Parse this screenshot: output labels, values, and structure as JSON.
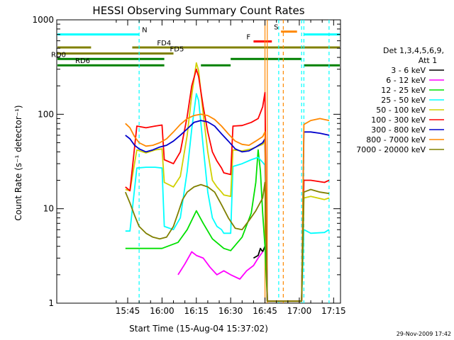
{
  "chart_data": {
    "type": "line",
    "title": "HESSI Observing Summary Count Rates",
    "xlabel": "Start Time (15-Aug-04 15:37:02)",
    "ylabel": "Count Rate (s⁻¹ detector⁻¹)",
    "ylog": true,
    "ylim": [
      1,
      1000
    ],
    "xlim_minutes": [
      -23,
      101
    ],
    "xticks": [
      {
        "t": 8,
        "label": "15:45"
      },
      {
        "t": 23,
        "label": "16:00"
      },
      {
        "t": 38,
        "label": "16:15"
      },
      {
        "t": 53,
        "label": "16:30"
      },
      {
        "t": 68,
        "label": "16:45"
      },
      {
        "t": 83,
        "label": "17:00"
      },
      {
        "t": 98,
        "label": "17:15"
      }
    ],
    "yticks": [
      {
        "v": 1,
        "label": "1"
      },
      {
        "v": 10,
        "label": "10"
      },
      {
        "v": 100,
        "label": "100"
      },
      {
        "v": 1000,
        "label": "1000"
      }
    ],
    "legend": {
      "header": [
        "Det 1,3,4,5,6,9,",
        "Att 1"
      ],
      "placement": "right"
    },
    "series": [
      {
        "name": "3 - 6 keV",
        "color": "#000000",
        "points": [
          [
            63,
            3.0
          ],
          [
            64,
            3.1
          ],
          [
            65,
            3.2
          ],
          [
            66,
            3.8
          ],
          [
            67,
            3.5
          ],
          [
            68,
            4.0
          ]
        ]
      },
      {
        "name": "6 - 12 keV",
        "color": "#ff00ff",
        "points": [
          [
            30,
            2.0
          ],
          [
            33,
            2.6
          ],
          [
            36,
            3.5
          ],
          [
            38,
            3.2
          ],
          [
            41,
            3.0
          ],
          [
            44,
            2.4
          ],
          [
            47,
            2.0
          ],
          [
            50,
            2.2
          ],
          [
            53,
            2.0
          ],
          [
            57,
            1.8
          ],
          [
            60,
            2.2
          ],
          [
            63,
            2.5
          ],
          [
            65,
            3.0
          ],
          [
            67,
            3.5
          ]
        ]
      },
      {
        "name": "12 - 25 keV",
        "color": "#00e000",
        "points": [
          [
            7,
            3.8
          ],
          [
            23,
            3.8
          ],
          [
            30,
            4.4
          ],
          [
            34,
            6.0
          ],
          [
            38,
            9.5
          ],
          [
            41,
            7.0
          ],
          [
            45,
            4.8
          ],
          [
            50,
            3.8
          ],
          [
            53,
            3.6
          ],
          [
            58,
            5.0
          ],
          [
            62,
            9.0
          ],
          [
            64,
            19.0
          ],
          [
            65,
            42.0
          ],
          [
            66,
            25.0
          ],
          [
            67,
            9.0
          ],
          [
            68,
            4.0
          ],
          [
            69,
            1.1
          ]
        ]
      },
      {
        "name": "25 - 50 keV",
        "color": "#00ffff",
        "points": [
          [
            7,
            5.8
          ],
          [
            9,
            5.8
          ],
          [
            12,
            27.0
          ],
          [
            16,
            27.5
          ],
          [
            20,
            27.5
          ],
          [
            23,
            27.0
          ],
          [
            24,
            6.5
          ],
          [
            28,
            6.0
          ],
          [
            31,
            8.0
          ],
          [
            34,
            25.0
          ],
          [
            36,
            70.0
          ],
          [
            38,
            165.0
          ],
          [
            39,
            140.0
          ],
          [
            41,
            45.0
          ],
          [
            43,
            15.0
          ],
          [
            45,
            8.0
          ],
          [
            47,
            6.5
          ],
          [
            49,
            6.0
          ],
          [
            50,
            5.5
          ],
          [
            53,
            5.5
          ],
          [
            54,
            28.0
          ],
          [
            58,
            30.0
          ],
          [
            62,
            33.0
          ],
          [
            65,
            35.0
          ],
          [
            67,
            31.0
          ],
          [
            68,
            29.0
          ],
          [
            69,
            1.05
          ],
          [
            74,
            1.05
          ],
          [
            84,
            1.05
          ],
          [
            85,
            6.0
          ],
          [
            88,
            5.5
          ],
          [
            94,
            5.6
          ],
          [
            96,
            6.0
          ]
        ]
      },
      {
        "name": "50 - 100 keV",
        "color": "#d0d000",
        "points": [
          [
            7,
            16.0
          ],
          [
            9,
            15.5
          ],
          [
            12,
            42.0
          ],
          [
            16,
            39.0
          ],
          [
            20,
            42.0
          ],
          [
            23,
            43.0
          ],
          [
            24,
            19.0
          ],
          [
            28,
            17.0
          ],
          [
            31,
            22.0
          ],
          [
            34,
            60.0
          ],
          [
            36,
            160.0
          ],
          [
            38,
            350.0
          ],
          [
            39,
            290.0
          ],
          [
            41,
            100.0
          ],
          [
            43,
            40.0
          ],
          [
            45,
            20.0
          ],
          [
            47,
            17.0
          ],
          [
            49,
            15.0
          ],
          [
            50,
            14.0
          ],
          [
            53,
            13.5
          ],
          [
            54,
            42.0
          ],
          [
            58,
            41.0
          ],
          [
            62,
            43.0
          ],
          [
            65,
            46.0
          ],
          [
            67,
            48.0
          ],
          [
            68,
            52.0
          ],
          [
            69,
            1.05
          ],
          [
            74,
            1.05
          ],
          [
            84,
            1.05
          ],
          [
            85,
            13.0
          ],
          [
            88,
            13.5
          ],
          [
            94,
            12.5
          ],
          [
            96,
            13.0
          ]
        ]
      },
      {
        "name": "100 - 300 keV",
        "color": "#ff0000",
        "points": [
          [
            7,
            17.0
          ],
          [
            9,
            15.5
          ],
          [
            12,
            75.0
          ],
          [
            16,
            72.0
          ],
          [
            20,
            75.0
          ],
          [
            23,
            77.0
          ],
          [
            24,
            33.0
          ],
          [
            28,
            30.0
          ],
          [
            31,
            40.0
          ],
          [
            34,
            95.0
          ],
          [
            36,
            200.0
          ],
          [
            38,
            300.0
          ],
          [
            39,
            250.0
          ],
          [
            41,
            120.0
          ],
          [
            43,
            65.0
          ],
          [
            45,
            40.0
          ],
          [
            47,
            32.0
          ],
          [
            49,
            27.0
          ],
          [
            50,
            24.0
          ],
          [
            53,
            23.0
          ],
          [
            54,
            75.0
          ],
          [
            58,
            76.0
          ],
          [
            62,
            82.0
          ],
          [
            65,
            90.0
          ],
          [
            67,
            120.0
          ],
          [
            68,
            170.0
          ],
          [
            69,
            1.05
          ],
          [
            74,
            1.05
          ],
          [
            84,
            1.05
          ],
          [
            85,
            20.0
          ],
          [
            88,
            20.0
          ],
          [
            94,
            19.0
          ],
          [
            96,
            20.0
          ]
        ]
      },
      {
        "name": "300 - 800 keV",
        "color": "#0000cc",
        "points": [
          [
            7,
            60.0
          ],
          [
            9,
            55.0
          ],
          [
            11,
            47.0
          ],
          [
            13,
            43.0
          ],
          [
            16,
            40.0
          ],
          [
            19,
            42.0
          ],
          [
            22,
            45.0
          ],
          [
            25,
            47.0
          ],
          [
            28,
            52.0
          ],
          [
            31,
            60.0
          ],
          [
            34,
            70.0
          ],
          [
            37,
            82.0
          ],
          [
            40,
            86.0
          ],
          [
            43,
            83.0
          ],
          [
            46,
            75.0
          ],
          [
            49,
            62.0
          ],
          [
            52,
            52.0
          ],
          [
            55,
            43.0
          ],
          [
            58,
            40.0
          ],
          [
            61,
            41.0
          ],
          [
            64,
            45.0
          ],
          [
            67,
            50.0
          ],
          [
            68,
            55.0
          ],
          [
            69,
            1.05
          ],
          [
            74,
            1.05
          ],
          [
            84,
            1.05
          ],
          [
            85,
            65.0
          ],
          [
            88,
            65.0
          ],
          [
            92,
            63.0
          ],
          [
            96,
            60.0
          ]
        ]
      },
      {
        "name": "800 - 7000 keV",
        "color": "#ff8800",
        "points": [
          [
            7,
            80.0
          ],
          [
            9,
            72.0
          ],
          [
            11,
            58.0
          ],
          [
            13,
            50.0
          ],
          [
            16,
            46.0
          ],
          [
            19,
            47.0
          ],
          [
            22,
            50.0
          ],
          [
            25,
            55.0
          ],
          [
            28,
            65.0
          ],
          [
            31,
            78.0
          ],
          [
            34,
            90.0
          ],
          [
            37,
            97.0
          ],
          [
            40,
            100.0
          ],
          [
            43,
            97.0
          ],
          [
            46,
            88.0
          ],
          [
            49,
            75.0
          ],
          [
            52,
            62.0
          ],
          [
            55,
            52.0
          ],
          [
            58,
            48.0
          ],
          [
            61,
            47.0
          ],
          [
            64,
            52.0
          ],
          [
            67,
            58.0
          ],
          [
            68,
            65.0
          ],
          [
            69,
            1.05
          ],
          [
            74,
            1.05
          ],
          [
            84,
            1.05
          ],
          [
            85,
            78.0
          ],
          [
            88,
            86.0
          ],
          [
            92,
            90.0
          ],
          [
            96,
            86.0
          ]
        ]
      },
      {
        "name": "7000 - 20000 keV",
        "color": "#808000",
        "points": [
          [
            7,
            15.0
          ],
          [
            9,
            11.5
          ],
          [
            11,
            8.5
          ],
          [
            13,
            6.5
          ],
          [
            16,
            5.5
          ],
          [
            19,
            5.0
          ],
          [
            22,
            4.8
          ],
          [
            25,
            5.0
          ],
          [
            28,
            6.5
          ],
          [
            30,
            9.0
          ],
          [
            32,
            12.5
          ],
          [
            34,
            15.0
          ],
          [
            37,
            17.0
          ],
          [
            40,
            18.0
          ],
          [
            43,
            17.0
          ],
          [
            46,
            15.0
          ],
          [
            49,
            11.0
          ],
          [
            52,
            8.0
          ],
          [
            55,
            6.2
          ],
          [
            58,
            6.0
          ],
          [
            61,
            7.5
          ],
          [
            64,
            9.5
          ],
          [
            67,
            13.0
          ],
          [
            68,
            19.0
          ],
          [
            69,
            1.05
          ],
          [
            74,
            1.05
          ],
          [
            84,
            1.05
          ],
          [
            85,
            15.0
          ],
          [
            88,
            16.0
          ],
          [
            92,
            15.0
          ],
          [
            96,
            14.5
          ]
        ]
      }
    ],
    "flag_bars": [
      {
        "label": "N",
        "color": "#00ffff",
        "level": 700,
        "segments": [
          [
            -23,
            13
          ],
          [
            85,
            101
          ]
        ]
      },
      {
        "label": "S",
        "color": "#ff8800",
        "level": 750,
        "segments": [
          [
            75,
            82
          ]
        ]
      },
      {
        "label": "F",
        "color": "#ff0000",
        "level": 590,
        "segments": [
          [
            63,
            71
          ]
        ]
      },
      {
        "label": "FD4",
        "color": "#808000",
        "level": 510,
        "segments": [
          [
            -23,
            -8
          ],
          [
            10,
            101
          ]
        ]
      },
      {
        "label": "FD5",
        "color": "#808000",
        "level": 440,
        "segments": [
          [
            -23,
            28
          ]
        ]
      },
      {
        "label": "RD0",
        "color": "#008000",
        "level": 385,
        "segments": [
          [
            -23,
            24
          ],
          [
            53,
            84
          ]
        ]
      },
      {
        "label": "RD6",
        "color": "#008000",
        "level": 330,
        "segments": [
          [
            -23,
            24
          ],
          [
            40,
            53
          ],
          [
            85,
            101
          ]
        ]
      }
    ],
    "event_lines": [
      {
        "t": 68,
        "color": "#ff8800"
      },
      {
        "t": 69,
        "color": "#ff8800"
      },
      {
        "t": 74,
        "color": "#00ffff",
        "dashed": true
      },
      {
        "t": 76,
        "color": "#ff8800",
        "dashed": true
      },
      {
        "t": 84,
        "color": "#00ffff",
        "dashed": true
      },
      {
        "t": 85,
        "color": "#00ffff",
        "dashed": true
      },
      {
        "t": 13,
        "color": "#00ffff",
        "dashed": true
      },
      {
        "t": 96,
        "color": "#00ffff",
        "dashed": true
      }
    ],
    "timestamp": "29-Nov-2009 17:42"
  }
}
